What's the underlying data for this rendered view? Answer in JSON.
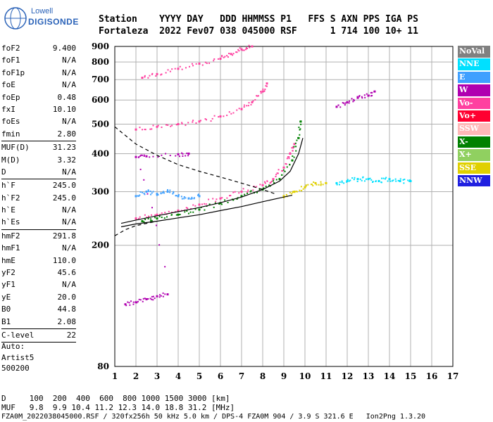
{
  "logo": {
    "brand": "Lowell",
    "product": "DIGISONDE"
  },
  "header": {
    "line1": "Station    YYYY DAY   DDD HHMMSS P1   FFS S AXN PPS IGA PS",
    "line2": "Fortaleza  2022 Fev07 038 045000 RSF      1 714 100 10+ 11"
  },
  "params": [
    {
      "name": "foF2",
      "value": "9.400"
    },
    {
      "name": "foF1",
      "value": "N/A"
    },
    {
      "name": "foF1p",
      "value": "N/A"
    },
    {
      "name": "foE",
      "value": "N/A"
    },
    {
      "name": "foEp",
      "value": "0.48"
    },
    {
      "name": "fxI",
      "value": "10.10"
    },
    {
      "name": "foEs",
      "value": "N/A"
    },
    {
      "name": "fmin",
      "value": "2.80"
    },
    {
      "sep": true
    },
    {
      "name": "MUF(D)",
      "value": "31.23"
    },
    {
      "name": "M(D)",
      "value": "3.32"
    },
    {
      "name": "D",
      "value": "N/A"
    },
    {
      "sep": true
    },
    {
      "name": "h`F",
      "value": "245.0"
    },
    {
      "name": "h`F2",
      "value": "245.0"
    },
    {
      "name": "h`E",
      "value": "N/A"
    },
    {
      "name": "h`Es",
      "value": "N/A"
    },
    {
      "sep": true
    },
    {
      "name": "hmF2",
      "value": "291.8"
    },
    {
      "name": "hmF1",
      "value": "N/A"
    },
    {
      "name": "hmE",
      "value": "110.0"
    },
    {
      "name": "yF2",
      "value": "45.6"
    },
    {
      "name": "yF1",
      "value": "N/A"
    },
    {
      "name": "yE",
      "value": "20.0"
    },
    {
      "name": "B0",
      "value": "44.8"
    },
    {
      "name": "B1",
      "value": "2.08"
    },
    {
      "sep": true
    },
    {
      "name": "C-level",
      "value": "22"
    },
    {
      "sep": true
    }
  ],
  "auto": {
    "line1": "Auto:",
    "line2": "Artist5",
    "line3": "500200"
  },
  "legend": [
    {
      "label": "NoVal",
      "color": "#808080"
    },
    {
      "label": "NNE",
      "color": "#00e0ff"
    },
    {
      "label": "E",
      "color": "#3fa0ff"
    },
    {
      "label": "W",
      "color": "#b000b0"
    },
    {
      "label": "Vo-",
      "color": "#ff40a0"
    },
    {
      "label": "Vo+",
      "color": "#ff0030"
    },
    {
      "label": "SSW",
      "color": "#ffb8b8"
    },
    {
      "label": "X-",
      "color": "#008000"
    },
    {
      "label": "X+",
      "color": "#90d060"
    },
    {
      "label": "SSE",
      "color": "#e0d000"
    },
    {
      "label": "NNW",
      "color": "#2020e0"
    }
  ],
  "footer": {
    "line1": "D     100  200  400  600  800 1000 1500 3000 [km]",
    "line2": "MUF   9.8  9.9 10.4 11.2 12.3 14.0 18.8 31.2 [MHz]",
    "line3": "FZA0M_2022038045000.RSF / 320fx256h 50 kHz 5.0 km / DPS-4 FZA0M 904 / 3.9 S 321.6 E   Ion2Png 1.3.20"
  },
  "chart_data": {
    "type": "scatter",
    "xlim": [
      1,
      17
    ],
    "ylim": [
      80,
      900
    ],
    "x_ticks": [
      "1",
      "2",
      "3",
      "4",
      "5",
      "6",
      "7",
      "8",
      "9",
      "10",
      "11",
      "12",
      "13",
      "14",
      "15",
      "16",
      "17"
    ],
    "y_ticks": [
      "80",
      "200",
      "300",
      "400",
      "500",
      "600",
      "700",
      "800",
      "900"
    ],
    "y_scale": "log",
    "grid": true,
    "series": [
      {
        "name": "E",
        "color": "#3fa0ff",
        "points": [
          [
            2.0,
            290
          ],
          [
            2.5,
            300
          ],
          [
            3,
            295
          ],
          [
            3.5,
            300
          ],
          [
            4,
            290
          ],
          [
            4.5,
            285
          ],
          [
            5,
            290
          ]
        ]
      },
      {
        "name": "Vo-",
        "color": "#ff40a0",
        "points": [
          [
            2.0,
            245
          ],
          [
            3,
            252
          ],
          [
            4,
            260
          ],
          [
            5,
            272
          ],
          [
            6,
            285
          ],
          [
            7,
            300
          ],
          [
            8,
            315
          ],
          [
            8.5,
            330
          ],
          [
            9,
            360
          ],
          [
            9.3,
            400
          ],
          [
            9.5,
            430
          ]
        ]
      },
      {
        "name": "X-",
        "color": "#008000",
        "points": [
          [
            2.3,
            240
          ],
          [
            3,
            245
          ],
          [
            4,
            252
          ],
          [
            5,
            262
          ],
          [
            6,
            275
          ],
          [
            7,
            290
          ],
          [
            8,
            305
          ],
          [
            8.8,
            330
          ],
          [
            9.4,
            380
          ],
          [
            9.7,
            450
          ],
          [
            9.8,
            510
          ]
        ]
      },
      {
        "name": "W",
        "color": "#b000b0",
        "points": [
          [
            1.5,
            128
          ],
          [
            2,
            130
          ],
          [
            2.5,
            133
          ],
          [
            3,
            136
          ],
          [
            3.5,
            138
          ],
          [
            2,
            390
          ],
          [
            2.5,
            392
          ],
          [
            4,
            398
          ],
          [
            4.5,
            400
          ]
        ]
      },
      {
        "name": "NNE",
        "color": "#00e0ff",
        "points": [
          [
            11.5,
            320
          ],
          [
            12,
            325
          ],
          [
            12.5,
            330
          ],
          [
            13,
            330
          ],
          [
            13.5,
            325
          ],
          [
            14,
            330
          ],
          [
            14.5,
            325
          ],
          [
            15,
            325
          ]
        ]
      },
      {
        "name": "SSE",
        "color": "#e0d000",
        "points": [
          [
            9,
            290
          ],
          [
            9.5,
            300
          ],
          [
            10,
            310
          ],
          [
            10.5,
            320
          ],
          [
            11,
            320
          ]
        ]
      },
      {
        "name": "Vo- (2nd hop)",
        "color": "#ff40a0",
        "points": [
          [
            2,
            480
          ],
          [
            3,
            490
          ],
          [
            4,
            500
          ],
          [
            5,
            510
          ],
          [
            6,
            530
          ],
          [
            7,
            560
          ],
          [
            7.5,
            590
          ],
          [
            8,
            640
          ],
          [
            8.2,
            680
          ]
        ]
      },
      {
        "name": "Vo- (3rd hop)",
        "color": "#ff40a0",
        "points": [
          [
            2.3,
            710
          ],
          [
            3,
            730
          ],
          [
            4,
            760
          ],
          [
            5,
            790
          ],
          [
            6,
            820
          ],
          [
            6.5,
            850
          ],
          [
            7,
            880
          ],
          [
            7.5,
            900
          ]
        ]
      },
      {
        "name": "Spread-F cluster",
        "color": "#b000b0",
        "points": [
          [
            11.5,
            570
          ],
          [
            12,
            590
          ],
          [
            12.5,
            610
          ],
          [
            13,
            620
          ],
          [
            13.3,
            640
          ]
        ]
      }
    ],
    "profile_curves": [
      {
        "name": "true-height profile",
        "style": "solid",
        "points": [
          [
            1.3,
            230
          ],
          [
            2,
            235
          ],
          [
            3,
            240
          ],
          [
            4,
            246
          ],
          [
            5,
            252
          ],
          [
            6,
            260
          ],
          [
            7,
            268
          ],
          [
            8,
            278
          ],
          [
            9,
            288
          ],
          [
            9.4,
            292
          ]
        ]
      },
      {
        "name": "model trace",
        "style": "solid",
        "points": [
          [
            1.3,
            236
          ],
          [
            2,
            242
          ],
          [
            3,
            250
          ],
          [
            4,
            258
          ],
          [
            5,
            266
          ],
          [
            6,
            276
          ],
          [
            7,
            288
          ],
          [
            8,
            305
          ],
          [
            8.8,
            325
          ],
          [
            9.3,
            350
          ],
          [
            9.7,
            400
          ],
          [
            9.9,
            450
          ]
        ]
      },
      {
        "name": "dashed upper",
        "style": "dashed",
        "points": [
          [
            1,
            490
          ],
          [
            2,
            430
          ],
          [
            3,
            395
          ],
          [
            4,
            368
          ],
          [
            5,
            350
          ],
          [
            6,
            335
          ],
          [
            7,
            320
          ],
          [
            8,
            305
          ],
          [
            8.6,
            295
          ]
        ]
      },
      {
        "name": "dashed lower",
        "style": "dashed",
        "points": [
          [
            1,
            215
          ],
          [
            1.5,
            225
          ],
          [
            2,
            232
          ],
          [
            3,
            240
          ]
        ]
      }
    ]
  }
}
